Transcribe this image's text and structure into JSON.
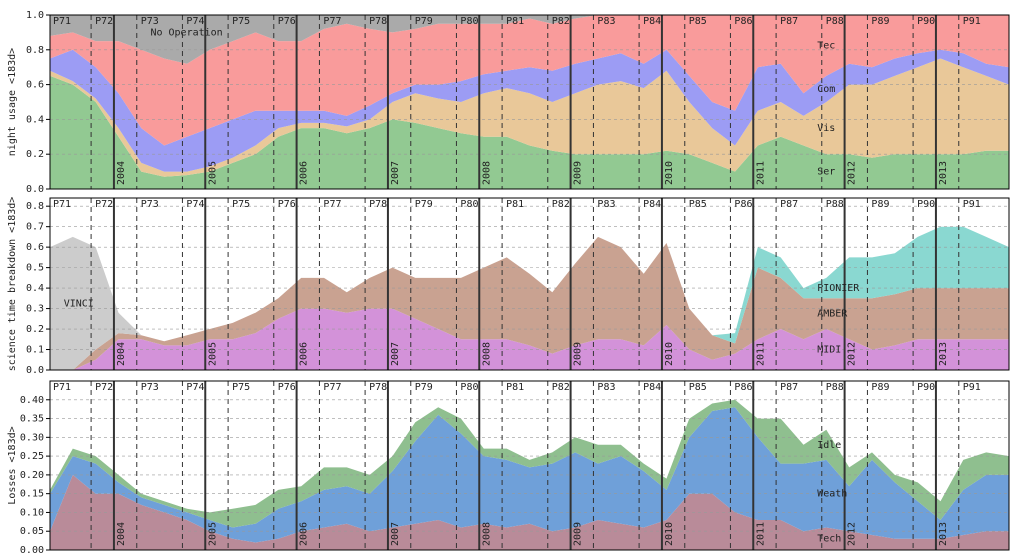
{
  "chart_data": [
    {
      "type": "stacked_area",
      "ylabel": "night usage <183d>",
      "x": [
        2003.3,
        2003.55,
        2003.8,
        2004.05,
        2004.3,
        2004.55,
        2004.8,
        2005.05,
        2005.3,
        2005.55,
        2005.8,
        2006.05,
        2006.3,
        2006.55,
        2006.8,
        2007.05,
        2007.3,
        2007.55,
        2007.8,
        2008.05,
        2008.3,
        2008.55,
        2008.8,
        2009.05,
        2009.3,
        2009.55,
        2009.8,
        2010.05,
        2010.3,
        2010.55,
        2010.8,
        2011.05,
        2011.3,
        2011.55,
        2011.8,
        2012.05,
        2012.3,
        2012.55,
        2012.8,
        2013.05,
        2013.3,
        2013.55,
        2013.8
      ],
      "xlim": [
        2003.3,
        2013.8
      ],
      "xticks": [
        2004,
        2005,
        2006,
        2007,
        2008,
        2009,
        2010,
        2011,
        2012,
        2013
      ],
      "period_ticks": [
        {
          "value": 2003.25,
          "label": "P71"
        },
        {
          "value": 2003.75,
          "label": "P72"
        },
        {
          "value": 2004.25,
          "label": "P73"
        },
        {
          "value": 2004.75,
          "label": "P74"
        },
        {
          "value": 2005.25,
          "label": "P75"
        },
        {
          "value": 2005.75,
          "label": "P76"
        },
        {
          "value": 2006.25,
          "label": "P77"
        },
        {
          "value": 2006.75,
          "label": "P78"
        },
        {
          "value": 2007.25,
          "label": "P79"
        },
        {
          "value": 2007.75,
          "label": "P80"
        },
        {
          "value": 2008.25,
          "label": "P81"
        },
        {
          "value": 2008.75,
          "label": "P82"
        },
        {
          "value": 2009.25,
          "label": "P83"
        },
        {
          "value": 2009.75,
          "label": "P84"
        },
        {
          "value": 2010.25,
          "label": "P85"
        },
        {
          "value": 2010.75,
          "label": "P86"
        },
        {
          "value": 2011.25,
          "label": "P87"
        },
        {
          "value": 2011.75,
          "label": "P88"
        },
        {
          "value": 2012.25,
          "label": "P89"
        },
        {
          "value": 2012.75,
          "label": "P90"
        },
        {
          "value": 2013.25,
          "label": "P91"
        }
      ],
      "ylim": [
        0,
        1
      ],
      "yticks": [
        {
          "value": 0,
          "label": "0.0"
        },
        0.2,
        0.4,
        0.6,
        0.8,
        {
          "value": 1,
          "label": "1.0"
        }
      ],
      "grid": true,
      "series": [
        {
          "name": "Ser",
          "color": "#92c992",
          "label_color": "#108010",
          "values": [
            0.65,
            0.6,
            0.5,
            0.3,
            0.1,
            0.07,
            0.08,
            0.1,
            0.15,
            0.2,
            0.3,
            0.35,
            0.35,
            0.32,
            0.35,
            0.4,
            0.38,
            0.35,
            0.32,
            0.3,
            0.3,
            0.25,
            0.22,
            0.2,
            0.2,
            0.2,
            0.2,
            0.22,
            0.2,
            0.15,
            0.1,
            0.25,
            0.3,
            0.25,
            0.2,
            0.2,
            0.18,
            0.2,
            0.2,
            0.2,
            0.2,
            0.22,
            0.22
          ]
        },
        {
          "name": "Vis",
          "color": "#e9c899",
          "label_color": "#d08000",
          "values": [
            0.03,
            0.02,
            0.02,
            0.05,
            0.05,
            0.03,
            0.02,
            0.03,
            0.03,
            0.05,
            0.05,
            0.03,
            0.03,
            0.04,
            0.05,
            0.1,
            0.17,
            0.17,
            0.18,
            0.25,
            0.28,
            0.3,
            0.28,
            0.35,
            0.4,
            0.42,
            0.38,
            0.46,
            0.3,
            0.2,
            0.15,
            0.2,
            0.2,
            0.17,
            0.3,
            0.4,
            0.42,
            0.45,
            0.5,
            0.55,
            0.5,
            0.43,
            0.38
          ]
        },
        {
          "name": "Com",
          "color": "#9c9cf4",
          "label_color": "#0000cc",
          "values": [
            0.07,
            0.18,
            0.18,
            0.2,
            0.2,
            0.15,
            0.2,
            0.22,
            0.22,
            0.2,
            0.1,
            0.07,
            0.07,
            0.06,
            0.08,
            0.05,
            0.05,
            0.08,
            0.12,
            0.11,
            0.1,
            0.15,
            0.18,
            0.17,
            0.15,
            0.16,
            0.14,
            0.12,
            0.15,
            0.15,
            0.2,
            0.25,
            0.22,
            0.13,
            0.15,
            0.12,
            0.1,
            0.1,
            0.08,
            0.05,
            0.08,
            0.07,
            0.1
          ]
        },
        {
          "name": "Tec",
          "color": "#f99b9b",
          "label_color": "#e00000",
          "values": [
            0.13,
            0.1,
            0.15,
            0.3,
            0.45,
            0.5,
            0.42,
            0.45,
            0.45,
            0.45,
            0.4,
            0.4,
            0.47,
            0.53,
            0.44,
            0.35,
            0.32,
            0.35,
            0.33,
            0.29,
            0.27,
            0.28,
            0.27,
            0.26,
            0.25,
            0.22,
            0.28,
            0.2,
            0.35,
            0.5,
            0.55,
            0.3,
            0.28,
            0.45,
            0.35,
            0.28,
            0.3,
            0.25,
            0.22,
            0.2,
            0.22,
            0.28,
            0.3
          ]
        },
        {
          "name": "No Operation",
          "color": "#aaaaaa",
          "label_color": "#333333",
          "values": [
            0.12,
            0.1,
            0.15,
            0.15,
            0.2,
            0.25,
            0.28,
            0.2,
            0.15,
            0.1,
            0.15,
            0.15,
            0.08,
            0.05,
            0.08,
            0.1,
            0.08,
            0.05,
            0.05,
            0.05,
            0.05,
            0.02,
            0.05,
            0.02,
            0,
            0,
            0,
            0,
            0,
            0,
            0,
            0,
            0,
            0,
            0,
            0,
            0,
            0,
            0,
            0,
            0,
            0,
            0
          ]
        }
      ]
    },
    {
      "type": "stacked_area",
      "ylabel": "science time breakdown <183d>",
      "x": [
        2003.3,
        2003.55,
        2003.8,
        2004.05,
        2004.3,
        2004.55,
        2004.8,
        2005.05,
        2005.3,
        2005.55,
        2005.8,
        2006.05,
        2006.3,
        2006.55,
        2006.8,
        2007.05,
        2007.3,
        2007.55,
        2007.8,
        2008.05,
        2008.3,
        2008.55,
        2008.8,
        2009.05,
        2009.3,
        2009.55,
        2009.8,
        2010.05,
        2010.3,
        2010.55,
        2010.8,
        2011.05,
        2011.3,
        2011.55,
        2011.8,
        2012.05,
        2012.3,
        2012.55,
        2012.8,
        2013.05,
        2013.3,
        2013.55,
        2013.8
      ],
      "xlim": [
        2003.3,
        2013.8
      ],
      "xticks": [
        2004,
        2005,
        2006,
        2007,
        2008,
        2009,
        2010,
        2011,
        2012,
        2013
      ],
      "period_ticks": [
        {
          "value": 2003.25,
          "label": "P71"
        },
        {
          "value": 2003.75,
          "label": "P72"
        },
        {
          "value": 2004.25,
          "label": "P73"
        },
        {
          "value": 2004.75,
          "label": "P74"
        },
        {
          "value": 2005.25,
          "label": "P75"
        },
        {
          "value": 2005.75,
          "label": "P76"
        },
        {
          "value": 2006.25,
          "label": "P77"
        },
        {
          "value": 2006.75,
          "label": "P78"
        },
        {
          "value": 2007.25,
          "label": "P79"
        },
        {
          "value": 2007.75,
          "label": "P80"
        },
        {
          "value": 2008.25,
          "label": "P81"
        },
        {
          "value": 2008.75,
          "label": "P82"
        },
        {
          "value": 2009.25,
          "label": "P83"
        },
        {
          "value": 2009.75,
          "label": "P84"
        },
        {
          "value": 2010.25,
          "label": "P85"
        },
        {
          "value": 2010.75,
          "label": "P86"
        },
        {
          "value": 2011.25,
          "label": "P87"
        },
        {
          "value": 2011.75,
          "label": "P88"
        },
        {
          "value": 2012.25,
          "label": "P89"
        },
        {
          "value": 2012.75,
          "label": "P90"
        },
        {
          "value": 2013.25,
          "label": "P91"
        }
      ],
      "ylim": [
        0,
        0.84
      ],
      "yticks": [
        {
          "value": 0,
          "label": "0.0"
        },
        0.1,
        0.2,
        0.3,
        0.4,
        0.5,
        0.6,
        0.7,
        0.8
      ],
      "grid": true,
      "series": [
        {
          "name": "MIDI",
          "color": "#d392d9",
          "label_color": "#aa00aa",
          "values": [
            0,
            0,
            0.05,
            0.15,
            0.15,
            0.12,
            0.12,
            0.15,
            0.15,
            0.18,
            0.25,
            0.3,
            0.3,
            0.28,
            0.3,
            0.3,
            0.25,
            0.2,
            0.15,
            0.15,
            0.15,
            0.12,
            0.08,
            0.12,
            0.15,
            0.15,
            0.12,
            0.22,
            0.1,
            0.05,
            0.08,
            0.15,
            0.2,
            0.15,
            0.2,
            0.15,
            0.1,
            0.12,
            0.15,
            0.15,
            0.15,
            0.15,
            0.15
          ]
        },
        {
          "name": "AMBER",
          "color": "#c9a291",
          "label_color": "#aa5533",
          "values": [
            0,
            0,
            0.05,
            0.03,
            0.02,
            0.02,
            0.05,
            0.05,
            0.08,
            0.1,
            0.1,
            0.15,
            0.15,
            0.1,
            0.15,
            0.2,
            0.2,
            0.25,
            0.3,
            0.35,
            0.4,
            0.35,
            0.3,
            0.4,
            0.5,
            0.45,
            0.35,
            0.4,
            0.2,
            0.12,
            0.05,
            0.35,
            0.25,
            0.2,
            0.15,
            0.2,
            0.25,
            0.25,
            0.25,
            0.25,
            0.25,
            0.25,
            0.25
          ]
        },
        {
          "name": "PIONIER",
          "color": "#8ad8d1",
          "label_color": "#11aaaa",
          "values": [
            0,
            0,
            0,
            0,
            0,
            0,
            0,
            0,
            0,
            0,
            0,
            0,
            0,
            0,
            0,
            0,
            0,
            0,
            0,
            0,
            0,
            0,
            0,
            0,
            0,
            0,
            0,
            0,
            0,
            0,
            0.05,
            0.1,
            0.1,
            0.05,
            0.1,
            0.2,
            0.2,
            0.2,
            0.25,
            0.3,
            0.3,
            0.25,
            0.2
          ]
        },
        {
          "name": "VINCI",
          "color": "#cccccc",
          "label_color": "#888888",
          "values": [
            0.6,
            0.65,
            0.5,
            0.1,
            0,
            0,
            0,
            0,
            0,
            0,
            0,
            0,
            0,
            0,
            0,
            0,
            0,
            0,
            0,
            0,
            0,
            0,
            0,
            0,
            0,
            0,
            0,
            0,
            0,
            0,
            0,
            0,
            0,
            0,
            0,
            0,
            0,
            0,
            0,
            0,
            0,
            0,
            0
          ]
        }
      ]
    },
    {
      "type": "stacked_area",
      "ylabel": "Losses <183d>",
      "x": [
        2003.3,
        2003.55,
        2003.8,
        2004.05,
        2004.3,
        2004.55,
        2004.8,
        2005.05,
        2005.3,
        2005.55,
        2005.8,
        2006.05,
        2006.3,
        2006.55,
        2006.8,
        2007.05,
        2007.3,
        2007.55,
        2007.8,
        2008.05,
        2008.3,
        2008.55,
        2008.8,
        2009.05,
        2009.3,
        2009.55,
        2009.8,
        2010.05,
        2010.3,
        2010.55,
        2010.8,
        2011.05,
        2011.3,
        2011.55,
        2011.8,
        2012.05,
        2012.3,
        2012.55,
        2012.8,
        2013.05,
        2013.3,
        2013.55,
        2013.8
      ],
      "xlim": [
        2003.3,
        2013.8
      ],
      "xticks": [
        2004,
        2005,
        2006,
        2007,
        2008,
        2009,
        2010,
        2011,
        2012,
        2013
      ],
      "period_ticks": [
        {
          "value": 2003.25,
          "label": "P71"
        },
        {
          "value": 2003.75,
          "label": "P72"
        },
        {
          "value": 2004.25,
          "label": "P73"
        },
        {
          "value": 2004.75,
          "label": "P74"
        },
        {
          "value": 2005.25,
          "label": "P75"
        },
        {
          "value": 2005.75,
          "label": "P76"
        },
        {
          "value": 2006.25,
          "label": "P77"
        },
        {
          "value": 2006.75,
          "label": "P78"
        },
        {
          "value": 2007.25,
          "label": "P79"
        },
        {
          "value": 2007.75,
          "label": "P80"
        },
        {
          "value": 2008.25,
          "label": "P81"
        },
        {
          "value": 2008.75,
          "label": "P82"
        },
        {
          "value": 2009.25,
          "label": "P83"
        },
        {
          "value": 2009.75,
          "label": "P84"
        },
        {
          "value": 2010.25,
          "label": "P85"
        },
        {
          "value": 2010.75,
          "label": "P86"
        },
        {
          "value": 2011.25,
          "label": "P87"
        },
        {
          "value": 2011.75,
          "label": "P88"
        },
        {
          "value": 2012.25,
          "label": "P89"
        },
        {
          "value": 2012.75,
          "label": "P90"
        },
        {
          "value": 2013.25,
          "label": "P91"
        }
      ],
      "ylim": [
        0,
        0.45
      ],
      "yticks": [
        {
          "value": 0,
          "label": "0.00"
        },
        0.05,
        {
          "value": 0.1,
          "label": "0.10"
        },
        0.15,
        {
          "value": 0.2,
          "label": "0.20"
        },
        0.25,
        {
          "value": 0.3,
          "label": "0.30"
        },
        0.35,
        {
          "value": 0.4,
          "label": "0.40"
        }
      ],
      "grid": true,
      "series": [
        {
          "name": "Tech",
          "color": "#b98b99",
          "label_color": "#772222",
          "values": [
            0.05,
            0.2,
            0.15,
            0.15,
            0.12,
            0.1,
            0.08,
            0.05,
            0.03,
            0.02,
            0.03,
            0.05,
            0.06,
            0.07,
            0.05,
            0.06,
            0.07,
            0.08,
            0.06,
            0.07,
            0.06,
            0.07,
            0.05,
            0.06,
            0.08,
            0.07,
            0.06,
            0.08,
            0.15,
            0.15,
            0.1,
            0.08,
            0.08,
            0.05,
            0.06,
            0.05,
            0.04,
            0.03,
            0.03,
            0.03,
            0.04,
            0.05,
            0.05
          ]
        },
        {
          "name": "Weath",
          "color": "#6fa0d9",
          "label_color": "#0055aa",
          "values": [
            0.1,
            0.05,
            0.08,
            0.03,
            0.02,
            0.02,
            0.02,
            0.03,
            0.03,
            0.05,
            0.08,
            0.08,
            0.1,
            0.1,
            0.1,
            0.15,
            0.22,
            0.28,
            0.25,
            0.18,
            0.18,
            0.15,
            0.18,
            0.2,
            0.15,
            0.18,
            0.15,
            0.08,
            0.15,
            0.22,
            0.28,
            0.22,
            0.15,
            0.18,
            0.18,
            0.12,
            0.2,
            0.15,
            0.1,
            0.05,
            0.12,
            0.15,
            0.15
          ]
        },
        {
          "name": "Idle",
          "color": "#8fbf8f",
          "label_color": "#44aa44",
          "values": [
            0.01,
            0.02,
            0.02,
            0.02,
            0.01,
            0.01,
            0.01,
            0.02,
            0.05,
            0.05,
            0.05,
            0.04,
            0.06,
            0.05,
            0.05,
            0.04,
            0.05,
            0.02,
            0.04,
            0.02,
            0.03,
            0.02,
            0.03,
            0.04,
            0.05,
            0.03,
            0.02,
            0.03,
            0.05,
            0.02,
            0.02,
            0.05,
            0.12,
            0.05,
            0.08,
            0.05,
            0.02,
            0.02,
            0.05,
            0.05,
            0.08,
            0.06,
            0.05
          ]
        }
      ]
    }
  ]
}
